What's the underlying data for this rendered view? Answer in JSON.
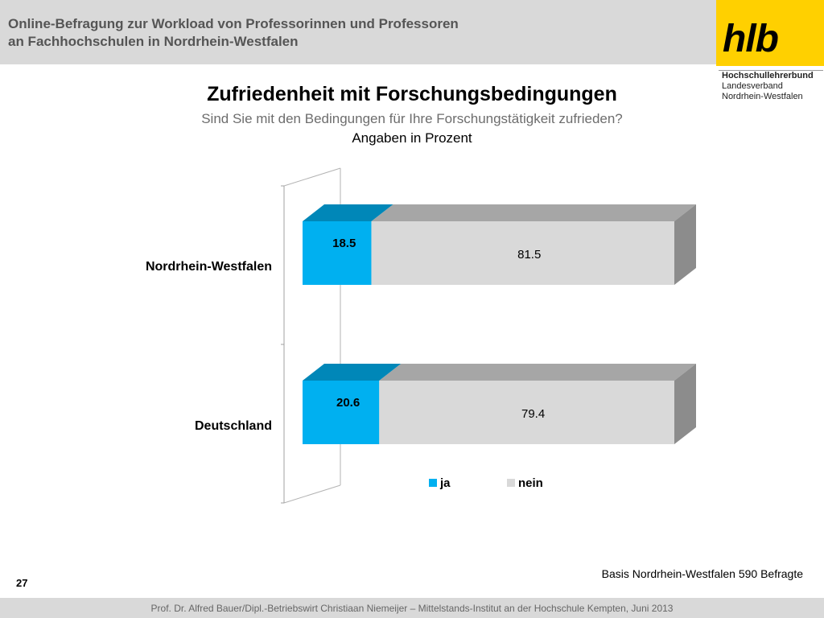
{
  "header": {
    "line1": "Online-Befragung  zur  Workload von Professorinnen und Professoren",
    "line2": "an Fachhochschulen in Nordrhein-Westfalen"
  },
  "logo": {
    "text": "hlb",
    "org_line1": "Hochschullehrerbund",
    "org_line2": "Landesverband",
    "org_line3": "Nordrhein-Westfalen"
  },
  "colors": {
    "ja": "#00b0f0",
    "ja_top": "#0087b8",
    "nein": "#d9d9d9",
    "nein_top": "#a6a6a6",
    "nein_side": "#8c8c8c"
  },
  "chart_data": {
    "type": "bar",
    "orientation": "horizontal",
    "stacked": true,
    "percent": true,
    "title": "Zufriedenheit mit Forschungsbedingungen",
    "subtitle": "Sind Sie mit den Bedingungen für Ihre Forschungstätigkeit zufrieden?",
    "unit_label": "Angaben in Prozent",
    "categories": [
      "Nordrhein-Westfalen",
      "Deutschland"
    ],
    "series": [
      {
        "name": "ja",
        "values": [
          18.5,
          20.6
        ]
      },
      {
        "name": "nein",
        "values": [
          81.5,
          79.4
        ]
      }
    ],
    "xlim": [
      0,
      100
    ],
    "legend": "bottom",
    "grid": false
  },
  "basis": "Basis Nordrhein-Westfalen 590 Befragte",
  "page_number": "27",
  "footer": "Prof. Dr. Alfred Bauer/Dipl.-Betriebswirt Christiaan Niemeijer – Mittelstands-Institut an der Hochschule Kempten, Juni 2013"
}
